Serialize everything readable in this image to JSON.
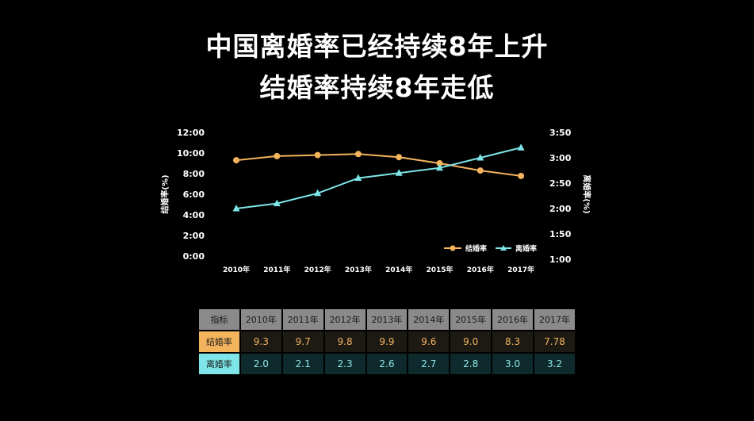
{
  "title_line1": "中国离婚率已经持续8年上升",
  "title_line2": "结婚率持续8年走低",
  "chart_data": {
    "type": "line",
    "categories": [
      "2010年",
      "2011年",
      "2012年",
      "2013年",
      "2014年",
      "2015年",
      "2016年",
      "2017年"
    ],
    "y_left": {
      "label": "结婚率(%)",
      "ticks": [
        "0:00",
        "2:00",
        "4:00",
        "6:00",
        "8:00",
        "10:00",
        "12:00"
      ],
      "range": [
        0,
        12
      ]
    },
    "y_right": {
      "label": "离婚率(%)",
      "ticks": [
        "1:00",
        "1:50",
        "2:00",
        "2:50",
        "3:00",
        "3:50"
      ],
      "range": [
        1.0,
        3.5
      ]
    },
    "series": [
      {
        "name": "结婚率",
        "axis": "left",
        "marker": "circle",
        "color": "#f4b45d",
        "values": [
          9.3,
          9.7,
          9.8,
          9.9,
          9.6,
          9.0,
          8.3,
          7.78
        ]
      },
      {
        "name": "离婚率",
        "axis": "right",
        "marker": "triangle",
        "color": "#7ee5e8",
        "values": [
          2.0,
          2.1,
          2.3,
          2.6,
          2.7,
          2.8,
          3.0,
          3.2
        ]
      }
    ],
    "legend_position": "bottom-right",
    "grid": false
  },
  "table": {
    "header_label": "指标",
    "years": [
      "2010年",
      "2011年",
      "2012年",
      "2013年",
      "2014年",
      "2015年",
      "2016年",
      "2017年"
    ],
    "rows": [
      {
        "label": "结婚率",
        "values": [
          "9.3",
          "9.7",
          "9.8",
          "9.9",
          "9.6",
          "9.0",
          "8.3",
          "7.78"
        ]
      },
      {
        "label": "离婚率",
        "values": [
          "2.0",
          "2.1",
          "2.3",
          "2.6",
          "2.7",
          "2.8",
          "3.0",
          "3.2"
        ]
      }
    ]
  }
}
